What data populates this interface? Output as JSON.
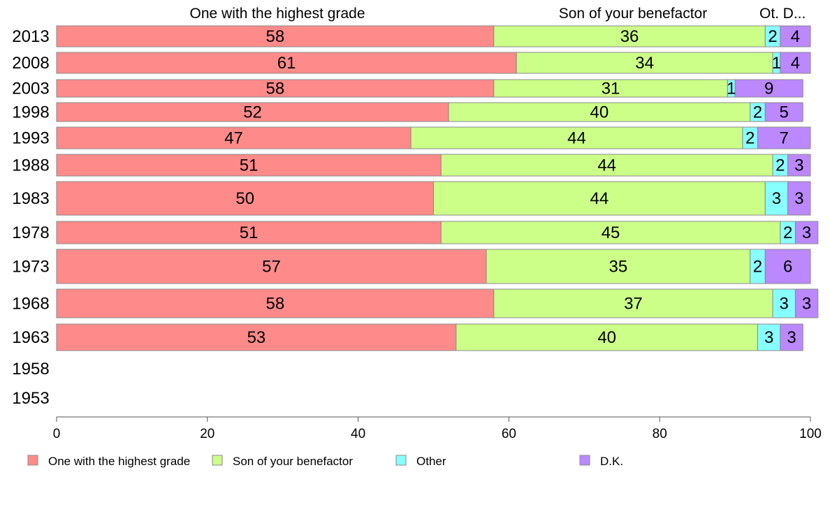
{
  "chart_data": {
    "type": "bar",
    "orientation": "horizontal",
    "stacked": true,
    "categories": [
      "2013",
      "2008",
      "2003",
      "1998",
      "1993",
      "1988",
      "1983",
      "1978",
      "1973",
      "1968",
      "1963",
      "1958",
      "1953"
    ],
    "series": [
      {
        "name": "One with the highest grade",
        "color": "#ff8a8a",
        "values": [
          58,
          61,
          58,
          52,
          47,
          51,
          50,
          51,
          57,
          58,
          53,
          null,
          null
        ]
      },
      {
        "name": "Son of your benefactor",
        "color": "#ccff88",
        "values": [
          36,
          34,
          31,
          40,
          44,
          44,
          44,
          45,
          35,
          37,
          40,
          null,
          null
        ]
      },
      {
        "name": "Other",
        "color": "#88ffff",
        "values": [
          2,
          1,
          1,
          2,
          2,
          2,
          3,
          2,
          2,
          3,
          3,
          null,
          null
        ]
      },
      {
        "name": "D.K.",
        "color": "#bb88ff",
        "values": [
          4,
          4,
          9,
          5,
          7,
          3,
          3,
          3,
          6,
          3,
          3,
          null,
          null
        ]
      }
    ],
    "top_headers": [
      "One with the highest grade",
      "Son of your benefactor",
      "Ot.",
      "D..."
    ],
    "x_ticks": [
      "0",
      "20",
      "40",
      "60",
      "80",
      "100"
    ],
    "xlim": [
      0,
      100
    ],
    "legend_position": "bottom",
    "grid": false
  }
}
